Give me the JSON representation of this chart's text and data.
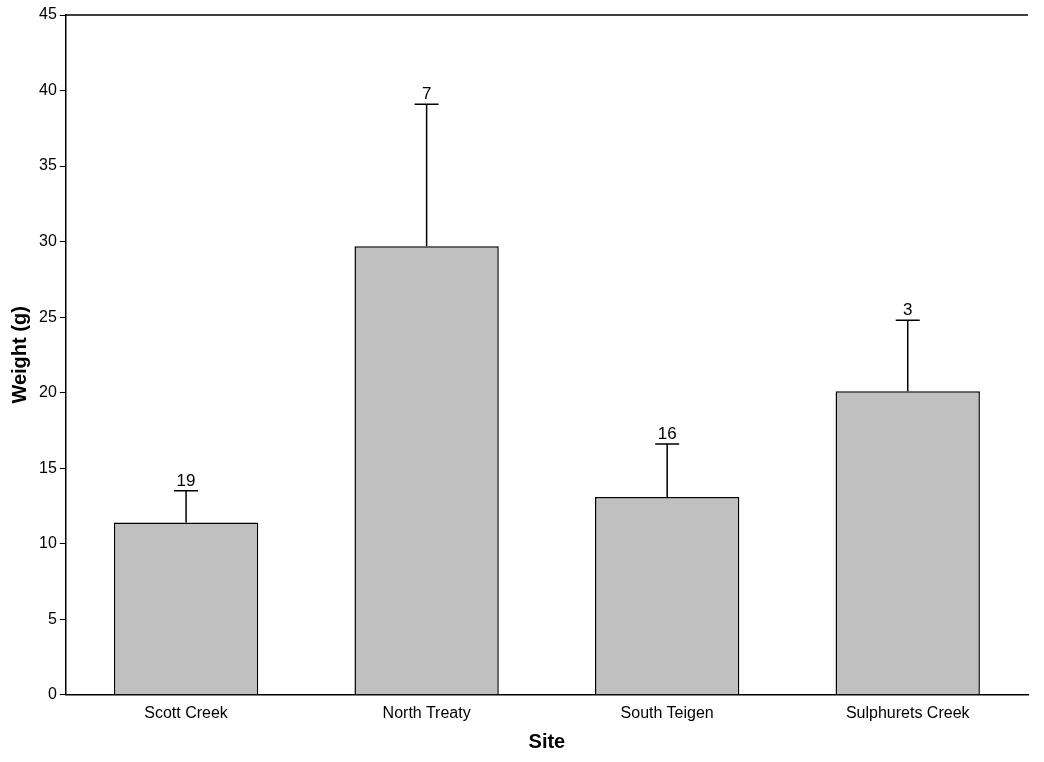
{
  "chart_data": {
    "type": "bar",
    "xlabel": "Site",
    "ylabel": "Weight (g)",
    "categories": [
      "Scott Creek",
      "North Treaty",
      "South Teigen",
      "Sulphurets Creek"
    ],
    "values": [
      11.4,
      29.7,
      13.1,
      20.1
    ],
    "color": "#c0c0c0",
    "errors": [
      [
        11.4,
        13.5
      ],
      [
        29.7,
        39.1
      ],
      [
        13.1,
        16.6
      ],
      [
        20.1,
        24.8
      ]
    ],
    "ylim": [
      0,
      45
    ],
    "yticks": [
      0,
      5,
      10,
      15,
      20,
      25,
      30,
      35,
      40,
      45
    ],
    "grid": false,
    "legend": false,
    "annotations": [
      {
        "text": "19",
        "x": "Scott Creek",
        "y": 13.5
      },
      {
        "text": "7",
        "x": "North Treaty",
        "y": 39.1
      },
      {
        "text": "16",
        "x": "South Teigen",
        "y": 16.6
      },
      {
        "text": "3",
        "x": "Sulphurets Creek",
        "y": 24.8
      }
    ]
  }
}
